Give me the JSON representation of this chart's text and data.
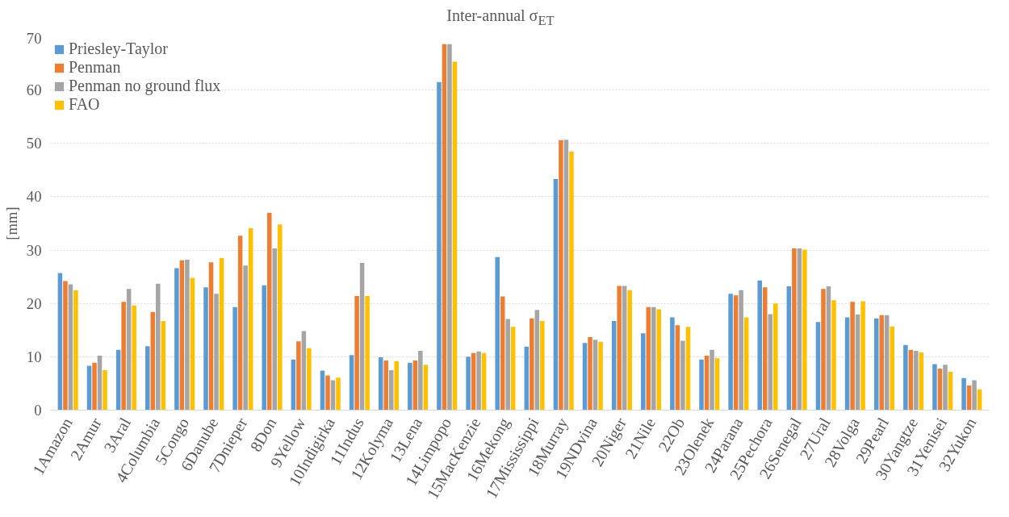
{
  "chart_data": {
    "type": "bar",
    "title": "Inter-annual σ$_{ET}$",
    "ylabel": "[mm]",
    "categories": [
      "1Amazon",
      "2Amur",
      "3Aral",
      "4Columbia",
      "5Congo",
      "6Danube",
      "7Dnieper",
      "8Don",
      "9Yellow",
      "10Indigirka",
      "11Indus",
      "12Kolyma",
      "13Lena",
      "14Limpopo",
      "15MacKenzie",
      "16Mekong",
      "17Mississippi",
      "18Murray",
      "19NDvina",
      "20Niger",
      "21Nile",
      "22Ob",
      "23Olenek",
      "24Parana",
      "25Pechora",
      "26Senegal",
      "27Ural",
      "28Volga",
      "29Pearl",
      "30Yangtze",
      "31Yenisei",
      "32Yukon"
    ],
    "series": [
      {
        "name": "Priesley-Taylor",
        "color": "#5b9bd5",
        "values": [
          25.7,
          8.3,
          11.3,
          12.0,
          26.6,
          23.0,
          19.3,
          23.4,
          9.5,
          7.4,
          10.3,
          9.9,
          8.9,
          61.5,
          10.0,
          28.7,
          11.9,
          43.3,
          12.6,
          16.7,
          14.4,
          17.4,
          9.5,
          21.8,
          24.3,
          23.2,
          16.5,
          17.4,
          17.2,
          12.2,
          8.6,
          6.0
        ]
      },
      {
        "name": "Penman",
        "color": "#ed7d31",
        "values": [
          24.2,
          8.9,
          20.3,
          18.4,
          28.1,
          27.7,
          32.7,
          37.0,
          12.9,
          6.5,
          21.4,
          9.3,
          9.3,
          68.6,
          10.7,
          21.3,
          17.2,
          50.6,
          13.7,
          23.3,
          19.3,
          15.9,
          10.2,
          21.5,
          23.0,
          30.3,
          22.7,
          20.3,
          17.8,
          11.3,
          7.8,
          4.6
        ]
      },
      {
        "name": "Penman no ground flux",
        "color": "#a5a5a5",
        "values": [
          23.6,
          10.2,
          22.7,
          23.7,
          28.2,
          21.8,
          27.1,
          30.3,
          14.8,
          5.6,
          27.6,
          7.5,
          11.1,
          68.6,
          11.0,
          17.1,
          18.8,
          50.7,
          13.2,
          23.3,
          19.3,
          13.0,
          11.3,
          22.5,
          18.0,
          30.3,
          23.2,
          17.9,
          17.8,
          11.1,
          8.5,
          5.6
        ]
      },
      {
        "name": "FAO",
        "color": "#ffc000",
        "values": [
          22.5,
          7.5,
          19.6,
          16.7,
          24.8,
          28.5,
          34.1,
          34.8,
          11.6,
          6.1,
          21.4,
          9.2,
          8.5,
          65.3,
          10.7,
          15.6,
          16.7,
          48.5,
          12.8,
          22.5,
          18.9,
          15.6,
          9.7,
          17.4,
          20.0,
          30.1,
          20.6,
          20.4,
          15.7,
          10.8,
          7.2,
          3.9
        ]
      }
    ],
    "ylim": [
      0,
      70
    ],
    "yticks": [
      0,
      10,
      20,
      30,
      40,
      50,
      60,
      70
    ],
    "grid": "y",
    "legend": "top left"
  }
}
